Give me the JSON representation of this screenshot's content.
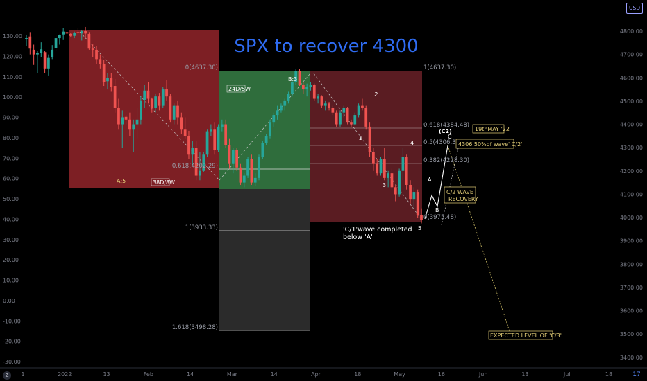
{
  "chart_data": {
    "type": "candlestick",
    "title": "SPX to recover 4300",
    "right_axis": {
      "unit_label": "USD",
      "ticks": [
        "4800.00",
        "4700.00",
        "4600.00",
        "4500.00",
        "4400.00",
        "4300.00",
        "4200.00",
        "4100.00",
        "4000.00",
        "3900.00",
        "3800.00",
        "3700.00",
        "3600.00",
        "3500.00",
        "3400.00"
      ],
      "ylim": [
        3355,
        4910
      ]
    },
    "left_axis": {
      "ticks": [
        "130.00",
        "120.00",
        "110.00",
        "100.00",
        "90.00",
        "80.00",
        "70.00",
        "60.00",
        "50.00",
        "40.00",
        "30.00",
        "20.00",
        "10.00",
        "0.00",
        "-10.00",
        "-20.00",
        "-30.00"
      ]
    },
    "x_axis": {
      "ticks": [
        "1",
        "2022",
        "13",
        "Feb",
        "14",
        "Mar",
        "14",
        "Apr",
        "18",
        "May",
        "16",
        "Jun",
        "13",
        "Jul",
        "18"
      ]
    },
    "candles": [
      [
        4766,
        4782,
        4736,
        4770
      ],
      [
        4777,
        4796,
        4700,
        4725
      ],
      [
        4720,
        4742,
        4655,
        4700
      ],
      [
        4700,
        4716,
        4620,
        4705
      ],
      [
        4706,
        4752,
        4690,
        4722
      ],
      [
        4710,
        4716,
        4620,
        4640
      ],
      [
        4640,
        4700,
        4610,
        4685
      ],
      [
        4690,
        4740,
        4680,
        4720
      ],
      [
        4728,
        4784,
        4715,
        4770
      ],
      [
        4770,
        4786,
        4742,
        4784
      ],
      [
        4786,
        4812,
        4762,
        4798
      ],
      [
        4796,
        4800,
        4760,
        4790
      ],
      [
        4788,
        4794,
        4775,
        4780
      ],
      [
        4780,
        4798,
        4770,
        4794
      ],
      [
        4796,
        4812,
        4786,
        4795
      ],
      [
        4790,
        4806,
        4760,
        4800
      ],
      [
        4800,
        4818,
        4770,
        4790
      ],
      [
        4788,
        4796,
        4720,
        4725
      ],
      [
        4725,
        4745,
        4690,
        4720
      ],
      [
        4720,
        4736,
        4660,
        4680
      ],
      [
        4680,
        4700,
        4640,
        4660
      ],
      [
        4660,
        4676,
        4565,
        4580
      ],
      [
        4585,
        4620,
        4550,
        4600
      ],
      [
        4600,
        4620,
        4540,
        4560
      ],
      [
        4565,
        4595,
        4450,
        4470
      ],
      [
        4470,
        4510,
        4380,
        4400
      ],
      [
        4400,
        4460,
        4300,
        4430
      ],
      [
        4432,
        4440,
        4400,
        4420
      ],
      [
        4420,
        4450,
        4350,
        4380
      ],
      [
        4380,
        4420,
        4280,
        4400
      ],
      [
        4400,
        4470,
        4340,
        4420
      ],
      [
        4420,
        4520,
        4400,
        4500
      ],
      [
        4505,
        4570,
        4470,
        4545
      ],
      [
        4545,
        4580,
        4490,
        4510
      ],
      [
        4510,
        4515,
        4450,
        4470
      ],
      [
        4470,
        4530,
        4450,
        4520
      ],
      [
        4520,
        4535,
        4460,
        4480
      ],
      [
        4480,
        4560,
        4470,
        4550
      ],
      [
        4550,
        4590,
        4500,
        4520
      ],
      [
        4520,
        4530,
        4410,
        4420
      ],
      [
        4420,
        4490,
        4400,
        4480
      ],
      [
        4480,
        4500,
        4400,
        4430
      ],
      [
        4430,
        4450,
        4360,
        4380
      ],
      [
        4380,
        4430,
        4340,
        4350
      ],
      [
        4350,
        4372,
        4250,
        4270
      ],
      [
        4270,
        4330,
        4220,
        4300
      ],
      [
        4300,
        4330,
        4160,
        4180
      ],
      [
        4180,
        4280,
        4160,
        4200
      ],
      [
        4200,
        4280,
        4195,
        4270
      ],
      [
        4270,
        4380,
        4260,
        4370
      ],
      [
        4370,
        4400,
        4350,
        4380
      ],
      [
        4380,
        4410,
        4270,
        4290
      ],
      [
        4290,
        4400,
        4280,
        4390
      ],
      [
        4390,
        4420,
        4370,
        4400
      ],
      [
        4400,
        4420,
        4300,
        4310
      ],
      [
        4310,
        4340,
        4210,
        4230
      ],
      [
        4230,
        4300,
        4190,
        4290
      ],
      [
        4290,
        4300,
        4200,
        4215
      ],
      [
        4215,
        4230,
        4140,
        4150
      ],
      [
        4150,
        4190,
        4130,
        4180
      ],
      [
        4180,
        4260,
        4170,
        4250
      ],
      [
        4250,
        4270,
        4140,
        4150
      ],
      [
        4150,
        4190,
        4137,
        4170
      ],
      [
        4170,
        4270,
        4160,
        4260
      ],
      [
        4260,
        4330,
        4250,
        4320
      ],
      [
        4320,
        4360,
        4310,
        4350
      ],
      [
        4350,
        4420,
        4340,
        4410
      ],
      [
        4410,
        4450,
        4390,
        4440
      ],
      [
        4440,
        4480,
        4420,
        4460
      ],
      [
        4460,
        4490,
        4450,
        4480
      ],
      [
        4480,
        4510,
        4460,
        4500
      ],
      [
        4500,
        4540,
        4490,
        4530
      ],
      [
        4530,
        4590,
        4520,
        4580
      ],
      [
        4580,
        4637,
        4570,
        4630
      ],
      [
        4630,
        4637,
        4565,
        4570
      ],
      [
        4570,
        4580,
        4530,
        4550
      ],
      [
        4550,
        4575,
        4520,
        4560
      ],
      [
        4560,
        4580,
        4545,
        4570
      ],
      [
        4570,
        4575,
        4500,
        4510
      ],
      [
        4510,
        4530,
        4490,
        4520
      ],
      [
        4520,
        4525,
        4470,
        4480
      ],
      [
        4480,
        4500,
        4460,
        4490
      ],
      [
        4490,
        4497,
        4460,
        4470
      ],
      [
        4470,
        4480,
        4440,
        4450
      ],
      [
        4450,
        4460,
        4390,
        4400
      ],
      [
        4400,
        4460,
        4390,
        4450
      ],
      [
        4450,
        4480,
        4430,
        4470
      ],
      [
        4470,
        4475,
        4400,
        4410
      ],
      [
        4410,
        4420,
        4390,
        4400
      ],
      [
        4400,
        4450,
        4395,
        4440
      ],
      [
        4440,
        4490,
        4430,
        4480
      ],
      [
        4480,
        4510,
        4460,
        4470
      ],
      [
        4470,
        4480,
        4380,
        4390
      ],
      [
        4390,
        4410,
        4260,
        4280
      ],
      [
        4280,
        4300,
        4200,
        4230
      ],
      [
        4230,
        4250,
        4180,
        4190
      ],
      [
        4190,
        4260,
        4180,
        4250
      ],
      [
        4250,
        4300,
        4160,
        4170
      ],
      [
        4170,
        4200,
        4130,
        4190
      ],
      [
        4190,
        4210,
        4120,
        4130
      ],
      [
        4130,
        4140,
        4070,
        4100
      ],
      [
        4100,
        4210,
        4090,
        4200
      ],
      [
        4200,
        4300,
        4160,
        4260
      ],
      [
        4260,
        4270,
        4120,
        4140
      ],
      [
        4140,
        4160,
        4060,
        4080
      ],
      [
        4080,
        4130,
        4040,
        4110
      ],
      [
        4110,
        4120,
        4000,
        4010
      ],
      [
        4010,
        4040,
        3975,
        3990
      ]
    ],
    "zones": [
      {
        "label": "A;5",
        "time_label": "38D/8W"
      },
      {
        "label": "B:3",
        "time_label": "24D/5W"
      }
    ],
    "fib_labels": {
      "zone_a_top": "0(4637.30)",
      "zone_a_618": "0.618(4202.29)",
      "ext_1": "1(3933.33)",
      "ext_1618": "1.618(3498.28)",
      "zone_c_top": "1(4637.30)",
      "zone_c_618": "0.618(4384.48)",
      "zone_c_05": "0.5(4306.39)",
      "zone_c_382": "0.382(4228.30)",
      "zone_c_0": "0(3975.48)"
    },
    "wave_labels": [
      "1",
      "2",
      "3",
      "4",
      "5",
      "A",
      "B",
      "C",
      "(C2)"
    ],
    "annotations": {
      "completed": [
        "'C/1'wave completed",
        "below 'A'"
      ],
      "date_note": "19thMAY '22",
      "target_note": "4306 50%of wave' C/2'",
      "recovery_note": [
        "C/2 WAVE",
        "RECOVERY"
      ],
      "expected_note": "EXPECTED LEVEL OF 'C/3'"
    },
    "colors": {
      "up": "#26a69a",
      "down": "#ef5350",
      "zone_red": "#7d1f24",
      "zone_green": "#2f6d3c",
      "zone_dark": "#2b2b2b",
      "zone_c": "#5a1c22",
      "title": "#2f6cf2",
      "note": "#e8d27a"
    }
  },
  "ui": {
    "usd_label": "USD",
    "zoom_label": "Z",
    "logo_symbol": "17"
  }
}
